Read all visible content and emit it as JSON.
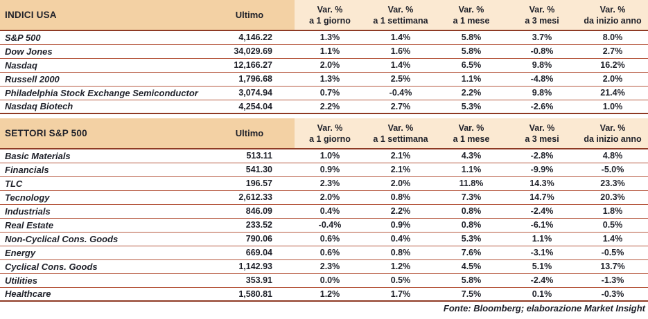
{
  "colors": {
    "header_bg": "#f3d1a4",
    "subheader_bg": "#fbe9d2",
    "rule_dark": "#8e3a24",
    "rule_light": "#b5563d",
    "text": "#1e2029"
  },
  "footer": "Fonte: Bloomberg; elaborazione Market Insight",
  "tables": [
    {
      "title": "INDICI USA",
      "ultimo_label": "Ultimo",
      "var_headers": [
        {
          "l1": "Var. %",
          "l2": "a 1 giorno"
        },
        {
          "l1": "Var. %",
          "l2": "a 1 settimana"
        },
        {
          "l1": "Var. %",
          "l2": "a 1 mese"
        },
        {
          "l1": "Var. %",
          "l2": "a 3 mesi"
        },
        {
          "l1": "Var. %",
          "l2": "da inizio anno"
        }
      ],
      "rows": [
        {
          "name": "S&P 500",
          "ultimo": "4,146.22",
          "vars": [
            "1.3%",
            "1.4%",
            "5.8%",
            "3.7%",
            "8.0%"
          ]
        },
        {
          "name": "Dow Jones",
          "ultimo": "34,029.69",
          "vars": [
            "1.1%",
            "1.6%",
            "5.8%",
            "-0.8%",
            "2.7%"
          ]
        },
        {
          "name": "Nasdaq",
          "ultimo": "12,166.27",
          "vars": [
            "2.0%",
            "1.4%",
            "6.5%",
            "9.8%",
            "16.2%"
          ]
        },
        {
          "name": "Russell 2000",
          "ultimo": "1,796.68",
          "vars": [
            "1.3%",
            "2.5%",
            "1.1%",
            "-4.8%",
            "2.0%"
          ]
        },
        {
          "name": "Philadelphia Stock Exchange Semiconductor",
          "ultimo": "3,074.94",
          "vars": [
            "0.7%",
            "-0.4%",
            "2.2%",
            "9.8%",
            "21.4%"
          ]
        },
        {
          "name": "Nasdaq Biotech",
          "ultimo": "4,254.04",
          "vars": [
            "2.2%",
            "2.7%",
            "5.3%",
            "-2.6%",
            "1.0%"
          ]
        }
      ]
    },
    {
      "title": "SETTORI S&P 500",
      "ultimo_label": "Ultimo",
      "var_headers": [
        {
          "l1": "Var. %",
          "l2": "a 1 giorno"
        },
        {
          "l1": "Var. %",
          "l2": "a 1 settimana"
        },
        {
          "l1": "Var. %",
          "l2": "a 1 mese"
        },
        {
          "l1": "Var. %",
          "l2": "a 3 mesi"
        },
        {
          "l1": "Var. %",
          "l2": "da inizio anno"
        }
      ],
      "rows": [
        {
          "name": "Basic Materials",
          "ultimo": "513.11",
          "vars": [
            "1.0%",
            "2.1%",
            "4.3%",
            "-2.8%",
            "4.8%"
          ]
        },
        {
          "name": "Financials",
          "ultimo": "541.30",
          "vars": [
            "0.9%",
            "2.1%",
            "1.1%",
            "-9.9%",
            "-5.0%"
          ]
        },
        {
          "name": "TLC",
          "ultimo": "196.57",
          "vars": [
            "2.3%",
            "2.0%",
            "11.8%",
            "14.3%",
            "23.3%"
          ]
        },
        {
          "name": "Tecnology",
          "ultimo": "2,612.33",
          "vars": [
            "2.0%",
            "0.8%",
            "7.3%",
            "14.7%",
            "20.3%"
          ]
        },
        {
          "name": "Industrials",
          "ultimo": "846.09",
          "vars": [
            "0.4%",
            "2.2%",
            "0.8%",
            "-2.4%",
            "1.8%"
          ]
        },
        {
          "name": "Real Estate",
          "ultimo": "233.52",
          "vars": [
            "-0.4%",
            "0.9%",
            "0.8%",
            "-6.1%",
            "0.5%"
          ]
        },
        {
          "name": "Non-Cyclical Cons. Goods",
          "ultimo": "790.06",
          "vars": [
            "0.6%",
            "0.4%",
            "5.3%",
            "1.1%",
            "1.4%"
          ]
        },
        {
          "name": "Energy",
          "ultimo": "669.04",
          "vars": [
            "0.6%",
            "0.8%",
            "7.6%",
            "-3.1%",
            "-0.5%"
          ]
        },
        {
          "name": "Cyclical Cons. Goods",
          "ultimo": "1,142.93",
          "vars": [
            "2.3%",
            "1.2%",
            "4.5%",
            "5.1%",
            "13.7%"
          ]
        },
        {
          "name": "Utilities",
          "ultimo": "353.91",
          "vars": [
            "0.0%",
            "0.5%",
            "5.8%",
            "-2.4%",
            "-1.3%"
          ]
        },
        {
          "name": "Healthcare",
          "ultimo": "1,580.81",
          "vars": [
            "1.2%",
            "1.7%",
            "7.5%",
            "0.1%",
            "-0.3%"
          ]
        }
      ]
    }
  ]
}
